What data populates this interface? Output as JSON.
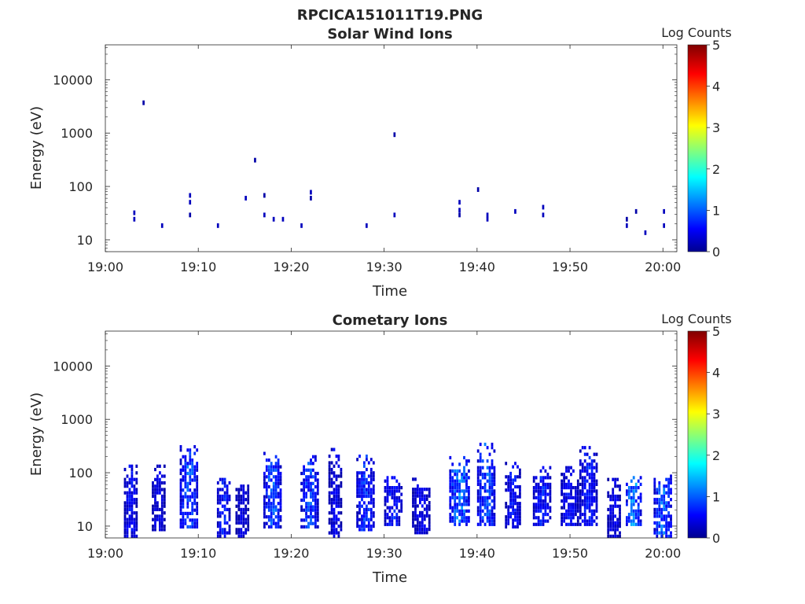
{
  "figure": {
    "title": "RPCICA151011T19.PNG"
  },
  "panels": [
    {
      "title": "Solar Wind Ions",
      "xlabel": "Time",
      "ylabel": "Energy (eV)",
      "colorbar_label": "Log Counts"
    },
    {
      "title": "Cometary Ions",
      "xlabel": "Time",
      "ylabel": "Energy (eV)",
      "colorbar_label": "Log Counts"
    }
  ],
  "chart_data": [
    {
      "type": "heatmap",
      "title": "Solar Wind Ions",
      "xlabel": "Time",
      "ylabel": "Energy (eV)",
      "xscale": "time",
      "yscale": "log",
      "xlim": [
        "19:00",
        "20:01:30"
      ],
      "ylim": [
        6,
        45000
      ],
      "x_ticks": [
        "19:00",
        "19:10",
        "19:20",
        "19:30",
        "19:40",
        "19:50",
        "20:00"
      ],
      "y_ticks": [
        "10",
        "100",
        "1000",
        "10000"
      ],
      "colorbar": {
        "label": "Log Counts",
        "range": [
          0,
          5
        ],
        "ticks": [
          "0",
          "1",
          "2",
          "3",
          "4",
          "5"
        ],
        "colormap": "jet"
      },
      "grid": false,
      "pixels": [
        {
          "t": "19:03",
          "e": 25,
          "v": 0.3
        },
        {
          "t": "19:03",
          "e": 33,
          "v": 0.3
        },
        {
          "t": "19:04",
          "e": 3800,
          "v": 0.2
        },
        {
          "t": "19:06",
          "e": 19,
          "v": 0.3
        },
        {
          "t": "19:09",
          "e": 70,
          "v": 0.3
        },
        {
          "t": "19:09",
          "e": 52,
          "v": 0.3
        },
        {
          "t": "19:09",
          "e": 30,
          "v": 0.2
        },
        {
          "t": "19:12",
          "e": 19,
          "v": 0.3
        },
        {
          "t": "19:15",
          "e": 62,
          "v": 0.3
        },
        {
          "t": "19:16",
          "e": 320,
          "v": 0.2
        },
        {
          "t": "19:17",
          "e": 70,
          "v": 0.2
        },
        {
          "t": "19:17",
          "e": 30,
          "v": 0.3
        },
        {
          "t": "19:18",
          "e": 25,
          "v": 0.3
        },
        {
          "t": "19:19",
          "e": 25,
          "v": 0.3
        },
        {
          "t": "19:22",
          "e": 80,
          "v": 0.3
        },
        {
          "t": "19:22",
          "e": 62,
          "v": 0.2
        },
        {
          "t": "19:21",
          "e": 19,
          "v": 0.3
        },
        {
          "t": "19:28",
          "e": 19,
          "v": 0.3
        },
        {
          "t": "19:31",
          "e": 960,
          "v": 0.2
        },
        {
          "t": "19:31",
          "e": 30,
          "v": 0.3
        },
        {
          "t": "19:38",
          "e": 52,
          "v": 0.3
        },
        {
          "t": "19:38",
          "e": 37,
          "v": 0.3
        },
        {
          "t": "19:38",
          "e": 30,
          "v": 0.2
        },
        {
          "t": "19:40",
          "e": 90,
          "v": 0.2
        },
        {
          "t": "19:41",
          "e": 30,
          "v": 0.3
        },
        {
          "t": "19:41",
          "e": 25,
          "v": 0.3
        },
        {
          "t": "19:44",
          "e": 35,
          "v": 0.3
        },
        {
          "t": "19:47",
          "e": 42,
          "v": 0.3
        },
        {
          "t": "19:47",
          "e": 30,
          "v": 0.3
        },
        {
          "t": "19:56",
          "e": 19,
          "v": 0.3
        },
        {
          "t": "19:56",
          "e": 25,
          "v": 0.2
        },
        {
          "t": "19:57",
          "e": 35,
          "v": 0.2
        },
        {
          "t": "19:58",
          "e": 14,
          "v": 0.3
        },
        {
          "t": "20:00",
          "e": 35,
          "v": 0.3
        },
        {
          "t": "20:00",
          "e": 19,
          "v": 0.3
        }
      ]
    },
    {
      "type": "heatmap",
      "title": "Cometary Ions",
      "xlabel": "Time",
      "ylabel": "Energy (eV)",
      "xscale": "time",
      "yscale": "log",
      "xlim": [
        "19:00",
        "20:01:30"
      ],
      "ylim": [
        6,
        45000
      ],
      "x_ticks": [
        "19:00",
        "19:10",
        "19:20",
        "19:30",
        "19:40",
        "19:50",
        "20:00"
      ],
      "y_ticks": [
        "10",
        "100",
        "1000",
        "10000"
      ],
      "colorbar": {
        "label": "Log Counts",
        "range": [
          0,
          5
        ],
        "ticks": [
          "0",
          "1",
          "2",
          "3",
          "4",
          "5"
        ],
        "colormap": "jet"
      },
      "grid": false,
      "bursts": [
        {
          "start": "19:02",
          "minutes": 1.6,
          "emin": 6,
          "emax": 130,
          "peak": 0.7
        },
        {
          "start": "19:05",
          "minutes": 1.6,
          "emin": 8,
          "emax": 125,
          "peak": 0.6
        },
        {
          "start": "19:08",
          "minutes": 1.9,
          "emin": 9,
          "emax": 300,
          "peak": 1.1
        },
        {
          "start": "19:12",
          "minutes": 1.4,
          "emin": 6,
          "emax": 80,
          "peak": 0.8
        },
        {
          "start": "19:14",
          "minutes": 1.6,
          "emin": 6,
          "emax": 80,
          "peak": 0.5
        },
        {
          "start": "19:17",
          "minutes": 2.0,
          "emin": 9,
          "emax": 240,
          "peak": 1.1
        },
        {
          "start": "19:21",
          "minutes": 2.0,
          "emin": 9,
          "emax": 200,
          "peak": 1.0
        },
        {
          "start": "19:24",
          "minutes": 1.6,
          "emin": 6,
          "emax": 260,
          "peak": 0.6
        },
        {
          "start": "19:27",
          "minutes": 1.9,
          "emin": 8,
          "emax": 200,
          "peak": 0.9
        },
        {
          "start": "19:30",
          "minutes": 1.9,
          "emin": 10,
          "emax": 80,
          "peak": 0.8
        },
        {
          "start": "19:33",
          "minutes": 1.9,
          "emin": 7,
          "emax": 80,
          "peak": 0.6
        },
        {
          "start": "19:37",
          "minutes": 2.2,
          "emin": 10,
          "emax": 200,
          "peak": 1.3
        },
        {
          "start": "19:40",
          "minutes": 2.0,
          "emin": 10,
          "emax": 330,
          "peak": 1.1
        },
        {
          "start": "19:43",
          "minutes": 1.8,
          "emin": 9,
          "emax": 150,
          "peak": 0.7
        },
        {
          "start": "19:46",
          "minutes": 1.9,
          "emin": 10,
          "emax": 125,
          "peak": 0.8
        },
        {
          "start": "19:49",
          "minutes": 2.0,
          "emin": 10,
          "emax": 120,
          "peak": 0.7
        },
        {
          "start": "19:51",
          "minutes": 2.0,
          "emin": 10,
          "emax": 310,
          "peak": 0.8
        },
        {
          "start": "19:54",
          "minutes": 1.5,
          "emin": 6,
          "emax": 80,
          "peak": 0.6
        },
        {
          "start": "19:56",
          "minutes": 1.8,
          "emin": 10,
          "emax": 80,
          "peak": 1.4
        },
        {
          "start": "19:59",
          "minutes": 2.1,
          "emin": 6,
          "emax": 90,
          "peak": 1.2
        }
      ]
    }
  ]
}
